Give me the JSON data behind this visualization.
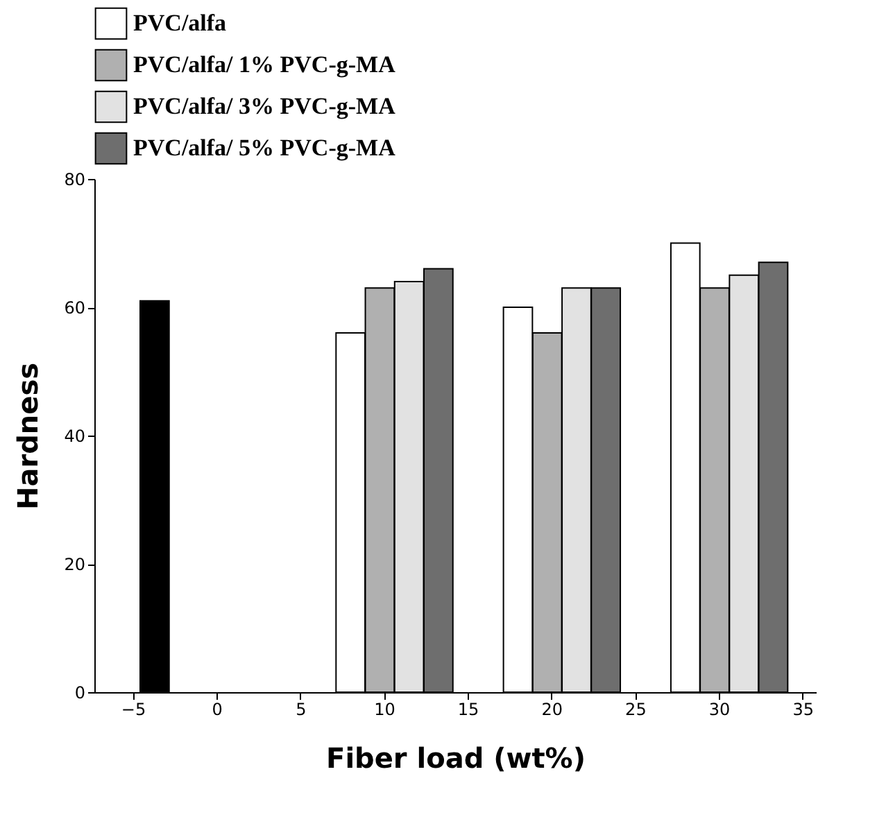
{
  "chart_data": {
    "type": "bar",
    "xlabel": "Fiber load (wt%)",
    "ylabel": "Hardness",
    "xlim": [
      -7.3,
      35.8
    ],
    "xticks": [
      -5,
      0,
      5,
      10,
      15,
      20,
      25,
      30,
      35
    ],
    "ylim": [
      0,
      80
    ],
    "yticks": [
      0,
      20,
      40,
      60,
      80
    ],
    "series": [
      {
        "color": "#000000",
        "x": [
          -3.7
        ],
        "values": [
          61
        ]
      },
      {
        "name": "PVC/alfa",
        "color": "#ffffff",
        "x": [
          8.0,
          18.0,
          28.0
        ],
        "values": [
          56,
          60,
          70
        ]
      },
      {
        "name": "PVC/alfa/ 1% PVC-g-MA",
        "color": "#b0b0b0",
        "x": [
          9.75,
          19.75,
          29.75
        ],
        "values": [
          63,
          56,
          63
        ]
      },
      {
        "name": "PVC/alfa/ 3% PVC-g-MA",
        "color": "#e2e2e2",
        "x": [
          11.5,
          21.5,
          31.5
        ],
        "values": [
          64,
          63,
          65
        ]
      },
      {
        "name": "PVC/alfa/ 5% PVC-g-MA",
        "color": "#6e6e6e",
        "x": [
          13.25,
          23.25,
          33.25
        ],
        "values": [
          66,
          63,
          67
        ]
      }
    ],
    "grid": false,
    "legend": "top"
  }
}
